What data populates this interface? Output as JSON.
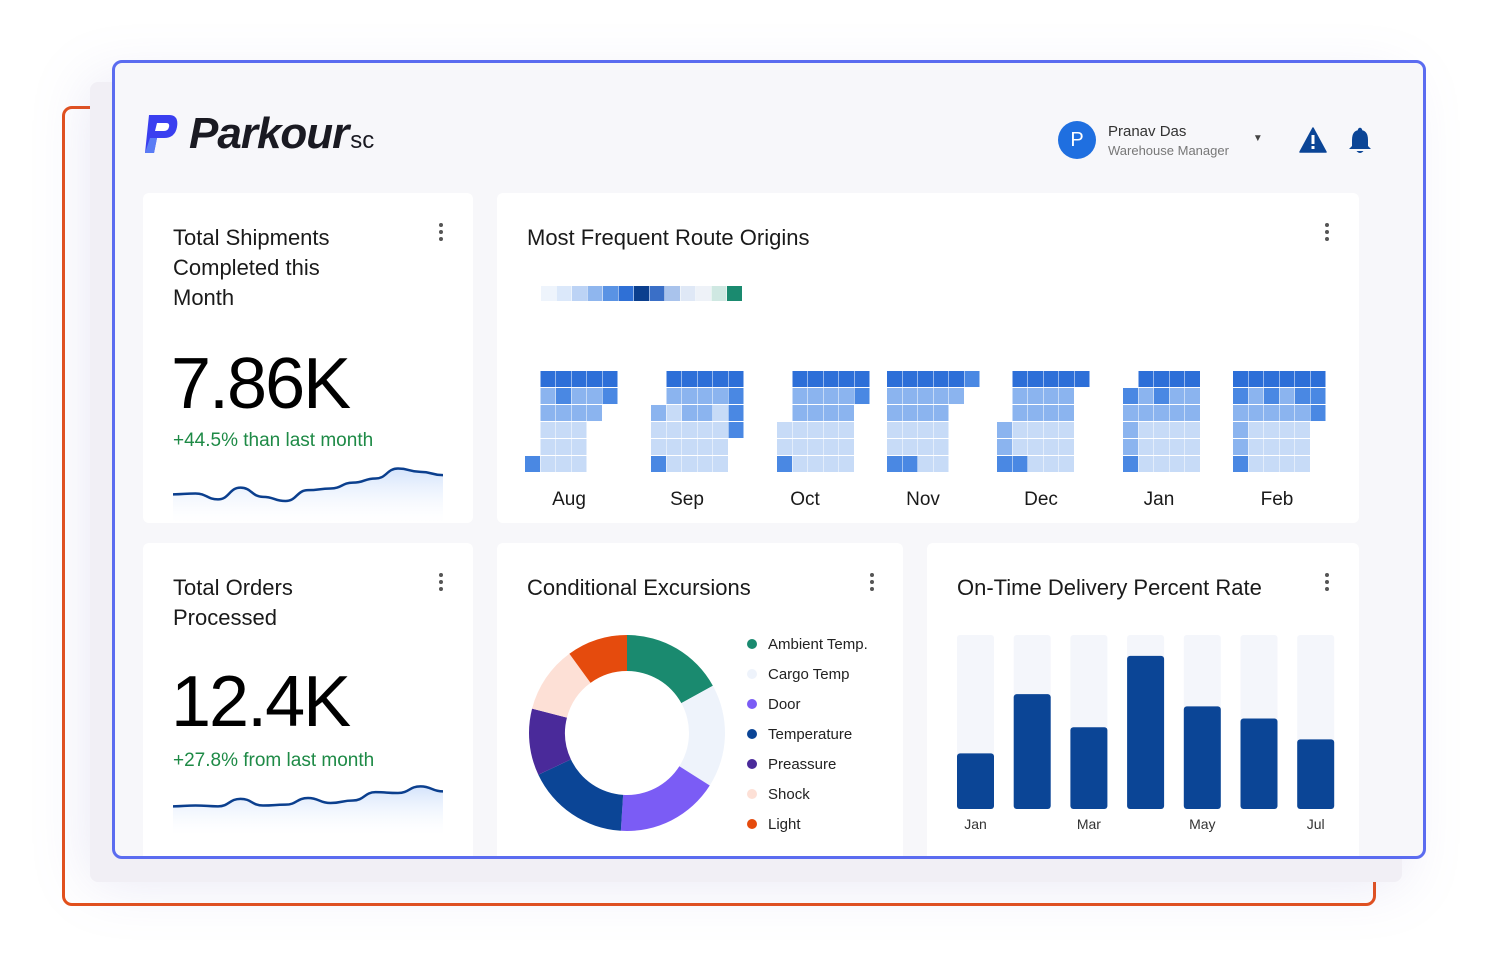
{
  "brand": {
    "name": "Parkour",
    "suffix": "sc"
  },
  "user": {
    "initial": "P",
    "name": "Pranav Das",
    "role": "Warehouse Manager"
  },
  "colors": {
    "accent": "#5b6cf0",
    "orange_frame": "#e3501c",
    "positive": "#1e8a46",
    "primary_bar": "#0b4596",
    "heat": "#3f7fde"
  },
  "icons": {
    "alert": "warning-triangle-icon",
    "notifications": "bell-icon",
    "menu": "kebab-menu-icon",
    "caret": "caret-down-icon"
  },
  "shipments": {
    "title_lines": [
      "Total Shipments",
      "Completed this",
      "Month"
    ],
    "value": "7.86K",
    "delta": "+44.5% than last month"
  },
  "orders": {
    "title_lines": [
      "Total Orders",
      "Processed"
    ],
    "value": "12.4K",
    "delta": "+27.8% from last month"
  },
  "routes": {
    "title": "Most Frequent Route Origins",
    "scale_colors": [
      "#eef4fc",
      "#dbe8fa",
      "#bcd3f5",
      "#8fb6ee",
      "#5a93e4",
      "#2f70d6",
      "#0b3f8e",
      "#3a6fc7",
      "#a9c3ec",
      "#dfe8f6",
      "#eef2f8",
      "#cfe8e2",
      "#1a8a6f"
    ],
    "months": [
      "Aug",
      "Sep",
      "Oct",
      "Nov",
      "Dec",
      "Jan",
      "Feb"
    ]
  },
  "excursions": {
    "title": "Conditional Excursions",
    "legend": [
      {
        "label": "Ambient Temp.",
        "color": "#1a8a6f"
      },
      {
        "label": "Cargo Temp",
        "color": "#eef3fb"
      },
      {
        "label": "Door",
        "color": "#7b5cf5"
      },
      {
        "label": "Temperature",
        "color": "#0b4596"
      },
      {
        "label": "Preassure",
        "color": "#4a2a9a"
      },
      {
        "label": "Shock",
        "color": "#fde0d6"
      },
      {
        "label": "Light",
        "color": "#e54b0d"
      }
    ]
  },
  "delivery": {
    "title": "On-Time Delivery Percent Rate"
  },
  "chart_data": [
    {
      "type": "line",
      "title": "Total Shipments Completed this Month",
      "x": [
        0,
        1,
        2,
        3,
        4,
        5,
        6,
        7,
        8,
        9,
        10,
        11,
        12
      ],
      "y": [
        20,
        21,
        14,
        28,
        17,
        12,
        25,
        27,
        34,
        39,
        51,
        47,
        43
      ]
    },
    {
      "type": "line",
      "title": "Total Orders Processed",
      "x": [
        0,
        1,
        2,
        3,
        4,
        5,
        6,
        7,
        8,
        9,
        10,
        11,
        12
      ],
      "y": [
        20,
        21,
        20,
        29,
        21,
        22,
        30,
        24,
        27,
        37,
        36,
        44,
        38
      ]
    },
    {
      "type": "pie",
      "title": "Conditional Excursions",
      "categories": [
        "Ambient Temp.",
        "Cargo Temp",
        "Door",
        "Temperature",
        "Preassure",
        "Shock",
        "Light"
      ],
      "values": [
        17,
        17,
        17,
        17,
        11,
        11,
        10
      ]
    },
    {
      "type": "bar",
      "title": "On-Time Delivery Percent Rate",
      "categories": [
        "Jan",
        "Feb",
        "Mar",
        "Apr",
        "May",
        "Jun",
        "Jul"
      ],
      "tick_labels": [
        "Jan",
        "",
        "Mar",
        "",
        "May",
        "",
        "Jul"
      ],
      "values": [
        32,
        66,
        47,
        88,
        59,
        52,
        40
      ],
      "ylim": [
        0,
        100
      ]
    },
    {
      "type": "heatmap",
      "title": "Most Frequent Route Origins",
      "x": [
        "Aug",
        "Sep",
        "Oct",
        "Nov",
        "Dec",
        "Jan",
        "Feb"
      ],
      "y": [
        "row 1",
        "row 2",
        "row 3",
        "row 4",
        "row 5",
        "row 6"
      ],
      "z": [
        [
          [
            -1,
            4,
            4,
            4,
            4,
            4
          ],
          [
            -1,
            2,
            3,
            2,
            2,
            3
          ],
          [
            -1,
            2,
            2,
            2,
            2,
            -1
          ],
          [
            -1,
            1,
            1,
            1,
            -1,
            -1
          ],
          [
            -1,
            1,
            1,
            1,
            -1,
            -1
          ],
          [
            3,
            1,
            1,
            1,
            -1,
            -1
          ]
        ],
        [
          [
            -1,
            4,
            4,
            4,
            4,
            4
          ],
          [
            -1,
            2,
            2,
            2,
            2,
            3
          ],
          [
            2,
            1,
            2,
            2,
            1,
            3
          ],
          [
            1,
            1,
            1,
            1,
            1,
            3
          ],
          [
            1,
            1,
            1,
            1,
            1,
            -1
          ],
          [
            3,
            1,
            1,
            1,
            1,
            -1
          ]
        ],
        [
          [
            -1,
            4,
            4,
            4,
            4,
            4
          ],
          [
            -1,
            2,
            2,
            2,
            2,
            3
          ],
          [
            -1,
            2,
            2,
            2,
            2,
            -1
          ],
          [
            1,
            1,
            1,
            1,
            1,
            -1
          ],
          [
            1,
            1,
            1,
            1,
            1,
            -1
          ],
          [
            3,
            1,
            1,
            1,
            1,
            -1
          ]
        ],
        [
          [
            4,
            4,
            4,
            4,
            4,
            3
          ],
          [
            2,
            2,
            2,
            2,
            2,
            -1
          ],
          [
            2,
            2,
            2,
            2,
            -1,
            -1
          ],
          [
            1,
            1,
            1,
            1,
            -1,
            -1
          ],
          [
            1,
            1,
            1,
            1,
            -1,
            -1
          ],
          [
            3,
            3,
            1,
            1,
            -1,
            -1
          ]
        ],
        [
          [
            -1,
            4,
            4,
            4,
            4,
            4
          ],
          [
            -1,
            2,
            2,
            2,
            2,
            -1
          ],
          [
            -1,
            2,
            2,
            2,
            2,
            -1
          ],
          [
            2,
            1,
            1,
            1,
            1,
            -1
          ],
          [
            2,
            1,
            1,
            1,
            1,
            -1
          ],
          [
            3,
            3,
            1,
            1,
            1,
            -1
          ]
        ],
        [
          [
            -1,
            4,
            4,
            4,
            4,
            -1
          ],
          [
            3,
            2,
            3,
            2,
            2,
            -1
          ],
          [
            2,
            2,
            2,
            2,
            2,
            -1
          ],
          [
            2,
            1,
            1,
            1,
            1,
            -1
          ],
          [
            2,
            1,
            1,
            1,
            1,
            -1
          ],
          [
            3,
            1,
            1,
            1,
            1,
            -1
          ]
        ],
        [
          [
            4,
            4,
            4,
            4,
            4,
            4
          ],
          [
            3,
            2,
            3,
            2,
            3,
            3
          ],
          [
            2,
            2,
            2,
            2,
            2,
            3
          ],
          [
            2,
            1,
            1,
            1,
            1,
            -1
          ],
          [
            2,
            1,
            1,
            1,
            1,
            -1
          ],
          [
            3,
            1,
            1,
            1,
            1,
            -1
          ]
        ]
      ]
    }
  ]
}
